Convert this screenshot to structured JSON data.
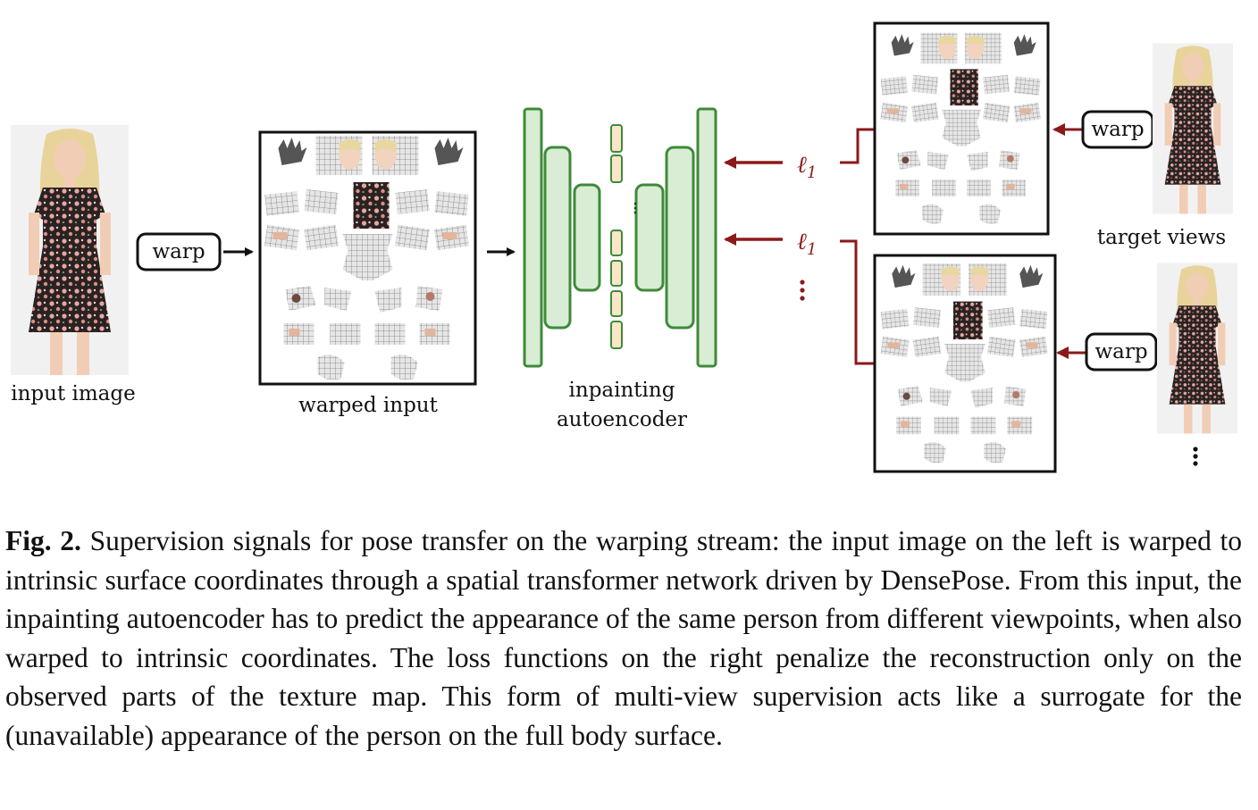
{
  "figure": {
    "labels": {
      "input_image": "input image",
      "warped_input": "warped input",
      "autoencoder_line1": "inpainting",
      "autoencoder_line2": "autoencoder",
      "target_views": "target views"
    },
    "warp_label": "warp",
    "loss_label": "ℓ",
    "loss_subscript": "1",
    "colors": {
      "encoder_fill": "#d8edd3",
      "encoder_stroke": "#3f8a3a",
      "bottleneck_fill": "#fbe6c8",
      "bottleneck_stroke": "#3f8a3a",
      "loss_arrow": "#8b1a1a",
      "dress_dark": "#2a2222",
      "mesh_gray": "#8c8c8c"
    }
  },
  "caption": {
    "fig_label": "Fig. 2.",
    "text": "Supervision signals for pose transfer on the warping stream: the input image on the left is warped to intrinsic surface coordinates through a spatial transformer network driven by DensePose. From this input, the inpainting autoencoder has to predict the appearance of the same person from different viewpoints, when also warped to intrinsic coordinates. The loss functions on the right penalize the reconstruction only on the observed parts of the texture map. This form of multi-view supervision acts like a surrogate for the (unavailable) appearance of the person on the full body surface."
  }
}
